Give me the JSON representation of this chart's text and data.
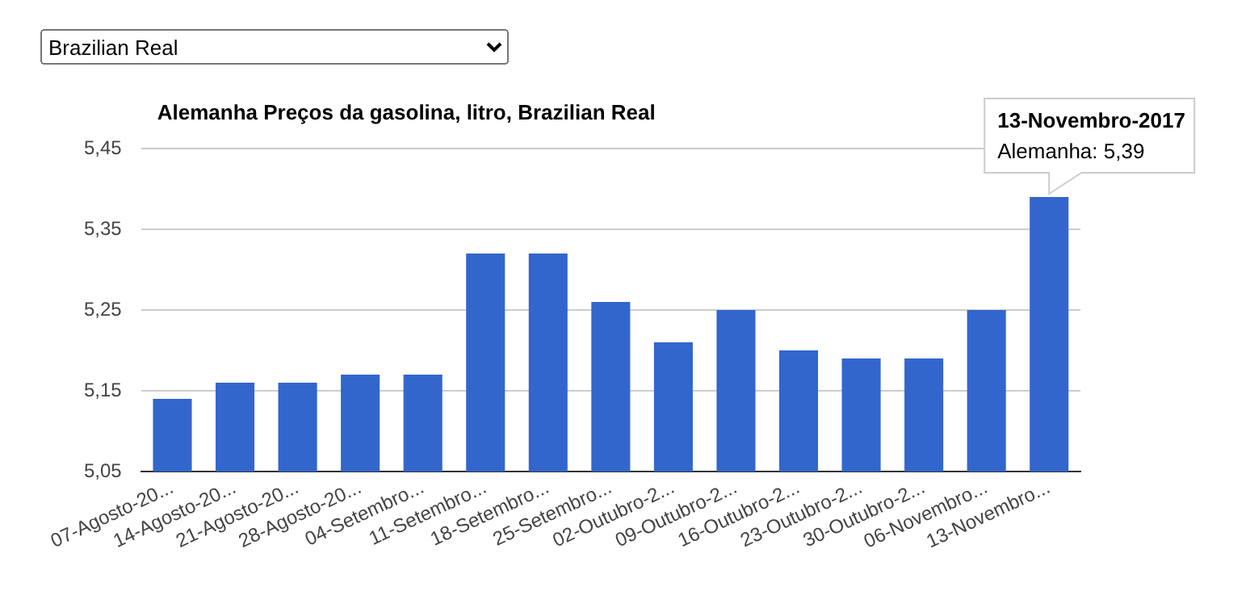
{
  "chart_data": {
    "type": "bar",
    "title": "Alemanha Preços da gasolina, litro, Brazilian Real",
    "categories": [
      "07-Agosto-20...",
      "14-Agosto-20...",
      "21-Agosto-20...",
      "28-Agosto-20...",
      "04-Setembro...",
      "11-Setembro...",
      "18-Setembro...",
      "25-Setembro...",
      "02-Outubro-2...",
      "09-Outubro-2...",
      "16-Outubro-2...",
      "23-Outubro-2...",
      "30-Outubro-2...",
      "06-Novembro...",
      "13-Novembro..."
    ],
    "values": [
      5.14,
      5.16,
      5.16,
      5.17,
      5.17,
      5.32,
      5.32,
      5.26,
      5.21,
      5.25,
      5.2,
      5.19,
      5.19,
      5.25,
      5.39
    ],
    "color": "#3366cc",
    "ylim": [
      5.05,
      5.45
    ],
    "yticks": [
      {
        "value": 5.05,
        "label": "5,05"
      },
      {
        "value": 5.15,
        "label": "5,15"
      },
      {
        "value": 5.25,
        "label": "5,25"
      },
      {
        "value": 5.35,
        "label": "5,35"
      },
      {
        "value": 5.45,
        "label": "5,45"
      }
    ],
    "grid": "y",
    "annotations": [
      "Brazilian Real",
      {
        "text": "13-Novembro-2017\nAlemanha: 5,39",
        "x": "13-Novembro...",
        "y": 5.39
      }
    ]
  }
}
